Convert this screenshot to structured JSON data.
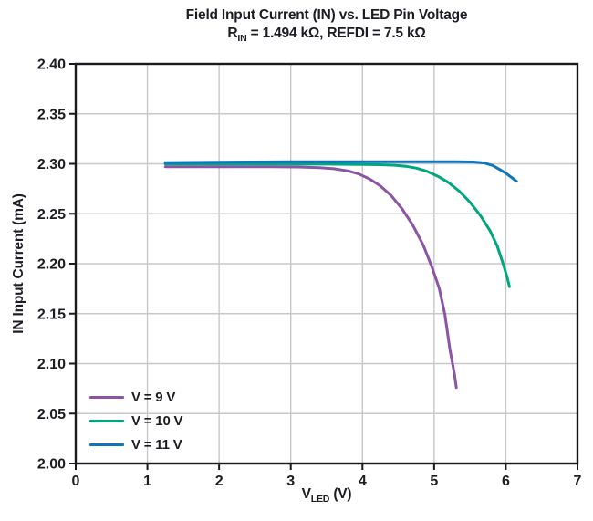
{
  "title": "Field Input Current (IN) vs. LED Pin Voltage",
  "subtitle_plain": "RIN = 1.494 kΩ, REFDI = 7.5 kΩ",
  "subtitle_segments": [
    {
      "t": "R"
    },
    {
      "t": "IN",
      "sub": true
    },
    {
      "t": " = 1.494 kΩ, REFDI = 7.5 kΩ"
    }
  ],
  "axes": {
    "x": {
      "label_plain": "VLED (V)",
      "label_segments": [
        {
          "t": "V"
        },
        {
          "t": "LED",
          "sub": true
        },
        {
          "t": " (V)"
        }
      ],
      "min": 0,
      "max": 7,
      "tick_values": [
        0,
        1,
        2,
        3,
        4,
        5,
        6,
        7
      ],
      "tick_labels": [
        "0",
        "1",
        "2",
        "3",
        "4",
        "5",
        "6",
        "7"
      ]
    },
    "y": {
      "label": "IN Input Current (mA)",
      "min": 2.0,
      "max": 2.4,
      "tick_values": [
        2.0,
        2.05,
        2.1,
        2.15,
        2.2,
        2.25,
        2.3,
        2.35,
        2.4
      ],
      "tick_labels": [
        "2.00",
        "2.05",
        "2.10",
        "2.15",
        "2.20",
        "2.25",
        "2.30",
        "2.35",
        "2.40"
      ]
    }
  },
  "palette": {
    "text": "#1c1c22",
    "axis": "#1a1a1e",
    "grid": "#c8c8c8",
    "background": "#ffffff"
  },
  "chart_data": {
    "type": "line",
    "title": "Field Input Current (IN) vs. LED Pin Voltage",
    "subtitle": "RIN = 1.494 kΩ, REFDI = 7.5 kΩ",
    "xlabel": "VLED (V)",
    "ylabel": "IN Input Current (mA)",
    "xlim": [
      0,
      7
    ],
    "ylim": [
      2.0,
      2.4
    ],
    "grid": true,
    "legend_position": "lower-left",
    "series": [
      {
        "name": "V = 9 V",
        "color": "#8a55a5",
        "points": [
          [
            1.25,
            2.297
          ],
          [
            1.75,
            2.297
          ],
          [
            2.25,
            2.297
          ],
          [
            2.75,
            2.297
          ],
          [
            3.1,
            2.2968
          ],
          [
            3.4,
            2.2961
          ],
          [
            3.6,
            2.2951
          ],
          [
            3.8,
            2.2929
          ],
          [
            3.95,
            2.2898
          ],
          [
            4.1,
            2.2848
          ],
          [
            4.25,
            2.2778
          ],
          [
            4.4,
            2.2682
          ],
          [
            4.55,
            2.2552
          ],
          [
            4.7,
            2.2389
          ],
          [
            4.85,
            2.2182
          ],
          [
            4.97,
            2.1965
          ],
          [
            5.07,
            2.1755
          ],
          [
            5.15,
            2.1495
          ],
          [
            5.22,
            2.1145
          ],
          [
            5.28,
            2.0905
          ],
          [
            5.31,
            2.076
          ]
        ]
      },
      {
        "name": "V = 10 V",
        "color": "#00a67e",
        "points": [
          [
            1.25,
            2.2997
          ],
          [
            2.0,
            2.2997
          ],
          [
            2.75,
            2.2997
          ],
          [
            3.5,
            2.2996
          ],
          [
            4.0,
            2.2994
          ],
          [
            4.25,
            2.2991
          ],
          [
            4.45,
            2.2985
          ],
          [
            4.6,
            2.2975
          ],
          [
            4.75,
            2.2957
          ],
          [
            4.9,
            2.2925
          ],
          [
            5.05,
            2.2876
          ],
          [
            5.2,
            2.2812
          ],
          [
            5.35,
            2.2726
          ],
          [
            5.5,
            2.2616
          ],
          [
            5.65,
            2.2478
          ],
          [
            5.78,
            2.2331
          ],
          [
            5.88,
            2.2178
          ],
          [
            5.96,
            2.2005
          ],
          [
            6.02,
            2.186
          ],
          [
            6.05,
            2.177
          ]
        ]
      },
      {
        "name": "V = 11 V",
        "color": "#0f75ba",
        "points": [
          [
            1.25,
            2.3012
          ],
          [
            2.0,
            2.3016
          ],
          [
            3.0,
            2.302
          ],
          [
            4.0,
            2.302
          ],
          [
            4.75,
            2.302
          ],
          [
            5.3,
            2.302
          ],
          [
            5.55,
            2.3018
          ],
          [
            5.7,
            2.3008
          ],
          [
            5.82,
            2.2982
          ],
          [
            5.92,
            2.2942
          ],
          [
            6.02,
            2.2896
          ],
          [
            6.1,
            2.2852
          ],
          [
            6.15,
            2.2825
          ]
        ]
      }
    ]
  },
  "legend": {
    "items": [
      {
        "label": "V = 9 V",
        "color": "#8a55a5"
      },
      {
        "label": "V = 10 V",
        "color": "#00a67e"
      },
      {
        "label": "V = 11 V",
        "color": "#0f75ba"
      }
    ]
  }
}
